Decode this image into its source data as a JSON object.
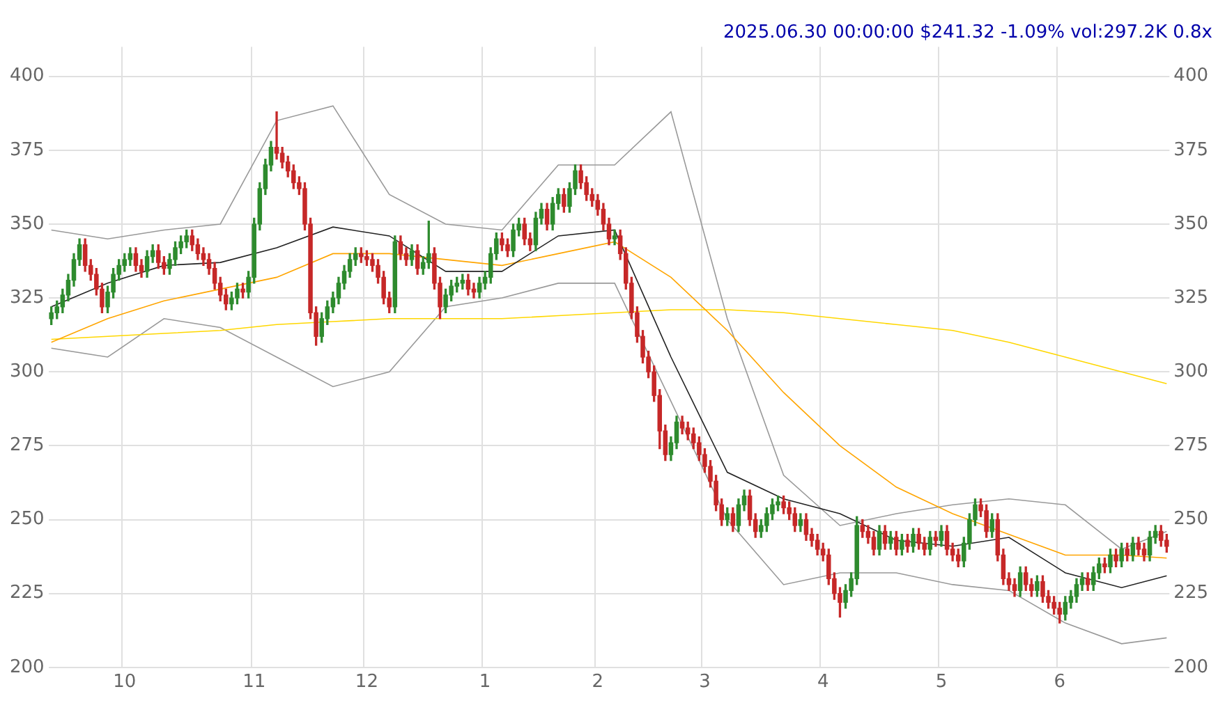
{
  "chart_data": {
    "type": "candlestick",
    "title": "2025.06.30 00:00:00 $241.32 -1.09% vol:297.2K 0.8x",
    "categories": [
      null,
      null,
      null,
      null,
      null,
      null,
      null,
      null,
      null,
      null,
      null,
      null,
      null,
      "10",
      null,
      null,
      null,
      null,
      null,
      null,
      null,
      null,
      null,
      null,
      null,
      null,
      null,
      null,
      null,
      null,
      null,
      null,
      null,
      null,
      null,
      null,
      "11",
      null,
      null,
      null,
      null,
      null,
      null,
      null,
      null,
      null,
      null,
      null,
      null,
      null,
      null,
      null,
      null,
      null,
      null,
      null,
      "12",
      null,
      null,
      null,
      null,
      null,
      null,
      null,
      null,
      null,
      null,
      null,
      null,
      null,
      null,
      null,
      null,
      null,
      null,
      null,
      null,
      "1",
      null,
      null,
      null,
      null,
      null,
      null,
      null,
      null,
      null,
      null,
      null,
      null,
      null,
      null,
      null,
      null,
      null,
      null,
      null,
      "2",
      null,
      null,
      null,
      null,
      null,
      null,
      null,
      null,
      null,
      null,
      null,
      null,
      null,
      null,
      null,
      null,
      null,
      null,
      "3",
      null,
      null,
      null,
      null,
      null,
      null,
      null,
      null,
      null,
      null,
      null,
      null,
      null,
      null,
      null,
      null,
      null,
      null,
      null,
      null,
      "4",
      null,
      null,
      null,
      null,
      null,
      null,
      null,
      null,
      null,
      null,
      null,
      null,
      null,
      null,
      null,
      null,
      null,
      null,
      null,
      null,
      "5",
      null,
      null,
      null,
      null,
      null,
      null,
      null,
      null,
      null,
      null,
      null,
      null,
      null,
      null,
      null,
      null,
      null,
      null,
      null,
      null,
      "6",
      null,
      null,
      null,
      null,
      null,
      null,
      null,
      null,
      null,
      null,
      null,
      null,
      null,
      null,
      null,
      null,
      null,
      null,
      null
    ],
    "colors": [
      "#2e8b2e",
      "#2e8b2e",
      "#2e8b2e",
      "#2e8b2e",
      "#2e8b2e",
      "#2e8b2e",
      "#c62828",
      "#c62828",
      "#c62828",
      "#c62828",
      "#2e8b2e",
      "#2e8b2e",
      "#2e8b2e",
      "#2e8b2e",
      "#2e8b2e",
      "#c62828",
      "#c62828",
      "#2e8b2e",
      "#2e8b2e",
      "#c62828",
      "#c62828",
      "#2e8b2e",
      "#2e8b2e",
      "#2e8b2e",
      "#2e8b2e",
      "#c62828",
      "#c62828",
      "#c62828",
      "#c62828",
      "#c62828",
      "#c62828",
      "#c62828",
      "#2e8b2e",
      "#2e8b2e",
      "#c62828",
      "#2e8b2e",
      "#2e8b2e",
      "#2e8b2e",
      "#2e8b2e",
      "#2e8b2e",
      "#c62828",
      "#c62828",
      "#c62828",
      "#c62828",
      "#c62828",
      "#c62828",
      "#c62828",
      "#c62828",
      "#2e8b2e",
      "#2e8b2e",
      "#2e8b2e",
      "#2e8b2e",
      "#2e8b2e",
      "#2e8b2e",
      "#2e8b2e",
      "#c62828",
      "#c62828",
      "#c62828",
      "#c62828",
      "#c62828",
      "#c62828",
      "#2e8b2e",
      "#c62828",
      "#c62828",
      "#2e8b2e",
      "#c62828",
      "#2e8b2e",
      "#2e8b2e",
      "#c62828",
      "#c62828",
      "#2e8b2e",
      "#2e8b2e",
      "#2e8b2e",
      "#2e8b2e",
      "#c62828",
      "#c62828",
      "#2e8b2e",
      "#2e8b2e",
      "#2e8b2e",
      "#2e8b2e",
      "#c62828",
      "#c62828",
      "#2e8b2e",
      "#2e8b2e",
      "#c62828",
      "#c62828",
      "#2e8b2e",
      "#2e8b2e",
      "#c62828",
      "#2e8b2e",
      "#2e8b2e",
      "#c62828",
      "#2e8b2e",
      "#2e8b2e",
      "#c62828",
      "#c62828",
      "#c62828",
      "#c62828",
      "#c62828",
      "#c62828",
      "#2e8b2e",
      "#c62828",
      "#c62828",
      "#c62828",
      "#c62828",
      "#c62828",
      "#c62828",
      "#c62828",
      "#c62828",
      "#c62828",
      "#2e8b2e",
      "#2e8b2e",
      "#c62828",
      "#c62828",
      "#c62828",
      "#c62828",
      "#c62828",
      "#c62828",
      "#c62828",
      "#c62828",
      "#2e8b2e",
      "#c62828",
      "#2e8b2e",
      "#2e8b2e",
      "#c62828",
      "#c62828",
      "#2e8b2e",
      "#2e8b2e",
      "#2e8b2e",
      "#2e8b2e",
      "#c62828",
      "#c62828",
      "#c62828",
      "#2e8b2e",
      "#c62828",
      "#c62828",
      "#c62828",
      "#c62828",
      "#c62828",
      "#c62828",
      "#c62828",
      "#2e8b2e",
      "#2e8b2e",
      "#2e8b2e",
      "#c62828",
      "#c62828",
      "#c62828",
      "#2e8b2e",
      "#c62828",
      "#2e8b2e",
      "#c62828",
      "#2e8b2e",
      "#c62828",
      "#2e8b2e",
      "#c62828",
      "#c62828",
      "#2e8b2e",
      "#c62828",
      "#2e8b2e",
      "#c62828",
      "#c62828",
      "#c62828",
      "#2e8b2e",
      "#2e8b2e",
      "#2e8b2e",
      "#c62828",
      "#c62828",
      "#2e8b2e",
      "#c62828",
      "#c62828",
      "#c62828",
      "#c62828",
      "#2e8b2e",
      "#c62828",
      "#c62828",
      "#2e8b2e",
      "#c62828",
      "#c62828",
      "#c62828",
      "#c62828",
      "#2e8b2e",
      "#2e8b2e",
      "#2e8b2e",
      "#2e8b2e",
      "#c62828",
      "#2e8b2e",
      "#2e8b2e",
      "#c62828",
      "#2e8b2e",
      "#c62828",
      "#2e8b2e",
      "#c62828",
      "#2e8b2e",
      "#c62828",
      "#c62828",
      "#2e8b2e",
      "#2e8b2e",
      "#c62828",
      "#c62828"
    ],
    "ohlc": [
      [
        318,
        322,
        316,
        320
      ],
      [
        320,
        324,
        318,
        322
      ],
      [
        322,
        328,
        320,
        326
      ],
      [
        326,
        333,
        324,
        331
      ],
      [
        331,
        340,
        329,
        338
      ],
      [
        338,
        345,
        336,
        343
      ],
      [
        343,
        345,
        334,
        336
      ],
      [
        336,
        338,
        331,
        333
      ],
      [
        333,
        335,
        326,
        328
      ],
      [
        328,
        330,
        320,
        322
      ],
      [
        322,
        329,
        320,
        327
      ],
      [
        327,
        335,
        325,
        333
      ],
      [
        333,
        338,
        331,
        336
      ],
      [
        336,
        340,
        334,
        338
      ],
      [
        338,
        342,
        336,
        340
      ],
      [
        340,
        342,
        334,
        336
      ],
      [
        336,
        338,
        332,
        334
      ],
      [
        334,
        341,
        332,
        339
      ],
      [
        339,
        343,
        337,
        341
      ],
      [
        341,
        343,
        335,
        337
      ],
      [
        337,
        339,
        333,
        335
      ],
      [
        335,
        340,
        333,
        338
      ],
      [
        338,
        344,
        336,
        342
      ],
      [
        342,
        346,
        340,
        344
      ],
      [
        344,
        348,
        342,
        346
      ],
      [
        346,
        348,
        341,
        343
      ],
      [
        343,
        345,
        338,
        340
      ],
      [
        340,
        342,
        336,
        338
      ],
      [
        338,
        340,
        333,
        335
      ],
      [
        335,
        337,
        328,
        330
      ],
      [
        330,
        332,
        324,
        326
      ],
      [
        326,
        328,
        321,
        323
      ],
      [
        323,
        327,
        321,
        325
      ],
      [
        325,
        330,
        323,
        328
      ],
      [
        328,
        330,
        325,
        327
      ],
      [
        327,
        334,
        325,
        332
      ],
      [
        332,
        352,
        330,
        350
      ],
      [
        350,
        364,
        348,
        362
      ],
      [
        362,
        372,
        360,
        370
      ],
      [
        370,
        378,
        368,
        376
      ],
      [
        376,
        388,
        372,
        374
      ],
      [
        374,
        376,
        369,
        371
      ],
      [
        371,
        373,
        366,
        368
      ],
      [
        368,
        370,
        362,
        364
      ],
      [
        364,
        366,
        360,
        362
      ],
      [
        362,
        364,
        348,
        350
      ],
      [
        350,
        352,
        318,
        320
      ],
      [
        320,
        322,
        309,
        312
      ],
      [
        312,
        320,
        310,
        318
      ],
      [
        318,
        324,
        316,
        322
      ],
      [
        322,
        327,
        320,
        325
      ],
      [
        325,
        332,
        323,
        330
      ],
      [
        330,
        336,
        328,
        334
      ],
      [
        334,
        340,
        332,
        338
      ],
      [
        338,
        342,
        336,
        340
      ],
      [
        340,
        342,
        337,
        339
      ],
      [
        339,
        341,
        336,
        338
      ],
      [
        338,
        340,
        334,
        336
      ],
      [
        336,
        338,
        330,
        332
      ],
      [
        332,
        334,
        323,
        325
      ],
      [
        325,
        327,
        320,
        322
      ],
      [
        322,
        346,
        320,
        344
      ],
      [
        344,
        346,
        338,
        340
      ],
      [
        340,
        342,
        336,
        338
      ],
      [
        338,
        343,
        336,
        341
      ],
      [
        341,
        343,
        333,
        335
      ],
      [
        335,
        339,
        333,
        337
      ],
      [
        337,
        351,
        335,
        340
      ],
      [
        340,
        342,
        328,
        330
      ],
      [
        330,
        332,
        318,
        322
      ],
      [
        322,
        328,
        320,
        326
      ],
      [
        326,
        331,
        324,
        329
      ],
      [
        329,
        332,
        327,
        330
      ],
      [
        330,
        333,
        328,
        331
      ],
      [
        331,
        333,
        326,
        328
      ],
      [
        328,
        330,
        325,
        327
      ],
      [
        327,
        332,
        325,
        330
      ],
      [
        330,
        334,
        328,
        332
      ],
      [
        332,
        342,
        330,
        340
      ],
      [
        340,
        347,
        338,
        345
      ],
      [
        345,
        347,
        341,
        343
      ],
      [
        343,
        345,
        339,
        341
      ],
      [
        341,
        350,
        339,
        348
      ],
      [
        348,
        352,
        346,
        350
      ],
      [
        350,
        352,
        343,
        345
      ],
      [
        345,
        347,
        341,
        343
      ],
      [
        343,
        354,
        341,
        352
      ],
      [
        352,
        357,
        350,
        355
      ],
      [
        355,
        357,
        348,
        350
      ],
      [
        350,
        359,
        348,
        357
      ],
      [
        357,
        362,
        355,
        360
      ],
      [
        360,
        362,
        354,
        356
      ],
      [
        356,
        364,
        354,
        362
      ],
      [
        362,
        370,
        360,
        368
      ],
      [
        368,
        370,
        362,
        364
      ],
      [
        364,
        366,
        358,
        360
      ],
      [
        360,
        362,
        356,
        358
      ],
      [
        358,
        360,
        353,
        355
      ],
      [
        355,
        357,
        348,
        350
      ],
      [
        350,
        352,
        343,
        345
      ],
      [
        345,
        348,
        343,
        346
      ],
      [
        346,
        348,
        338,
        340
      ],
      [
        340,
        342,
        328,
        330
      ],
      [
        330,
        332,
        318,
        320
      ],
      [
        320,
        322,
        310,
        312
      ],
      [
        312,
        314,
        303,
        305
      ],
      [
        305,
        307,
        298,
        300
      ],
      [
        300,
        302,
        290,
        292
      ],
      [
        292,
        294,
        274,
        280
      ],
      [
        280,
        282,
        270,
        272
      ],
      [
        272,
        278,
        270,
        276
      ],
      [
        276,
        285,
        274,
        283
      ],
      [
        283,
        285,
        279,
        281
      ],
      [
        281,
        283,
        277,
        279
      ],
      [
        279,
        281,
        274,
        276
      ],
      [
        276,
        278,
        270,
        272
      ],
      [
        272,
        274,
        266,
        268
      ],
      [
        268,
        270,
        261,
        263
      ],
      [
        263,
        265,
        253,
        255
      ],
      [
        255,
        257,
        248,
        250
      ],
      [
        250,
        254,
        248,
        252
      ],
      [
        252,
        254,
        246,
        248
      ],
      [
        248,
        257,
        246,
        255
      ],
      [
        255,
        260,
        253,
        258
      ],
      [
        258,
        260,
        248,
        250
      ],
      [
        250,
        252,
        244,
        246
      ],
      [
        246,
        250,
        244,
        248
      ],
      [
        248,
        254,
        246,
        252
      ],
      [
        252,
        257,
        250,
        255
      ],
      [
        255,
        258,
        253,
        256
      ],
      [
        256,
        258,
        252,
        254
      ],
      [
        254,
        256,
        250,
        252
      ],
      [
        252,
        254,
        246,
        248
      ],
      [
        248,
        252,
        246,
        250
      ],
      [
        250,
        252,
        243,
        245
      ],
      [
        245,
        247,
        241,
        243
      ],
      [
        243,
        245,
        238,
        240
      ],
      [
        240,
        242,
        236,
        238
      ],
      [
        238,
        240,
        228,
        230
      ],
      [
        230,
        232,
        223,
        225
      ],
      [
        225,
        227,
        217,
        222
      ],
      [
        222,
        228,
        220,
        226
      ],
      [
        226,
        232,
        224,
        230
      ],
      [
        230,
        251,
        228,
        248
      ],
      [
        248,
        250,
        244,
        246
      ],
      [
        246,
        248,
        242,
        244
      ],
      [
        244,
        246,
        238,
        240
      ],
      [
        240,
        248,
        238,
        246
      ],
      [
        246,
        248,
        240,
        242
      ],
      [
        242,
        246,
        240,
        244
      ],
      [
        244,
        246,
        238,
        240
      ],
      [
        240,
        245,
        238,
        243
      ],
      [
        243,
        245,
        239,
        241
      ],
      [
        241,
        247,
        239,
        245
      ],
      [
        245,
        247,
        240,
        242
      ],
      [
        242,
        244,
        238,
        240
      ],
      [
        240,
        246,
        238,
        244
      ],
      [
        244,
        246,
        241,
        243
      ],
      [
        243,
        248,
        241,
        246
      ],
      [
        246,
        248,
        238,
        240
      ],
      [
        240,
        242,
        236,
        238
      ],
      [
        238,
        240,
        234,
        236
      ],
      [
        236,
        244,
        234,
        242
      ],
      [
        242,
        252,
        240,
        250
      ],
      [
        250,
        257,
        248,
        255
      ],
      [
        255,
        257,
        251,
        253
      ],
      [
        253,
        255,
        244,
        246
      ],
      [
        246,
        252,
        244,
        250
      ],
      [
        250,
        252,
        236,
        238
      ],
      [
        238,
        240,
        228,
        230
      ],
      [
        230,
        232,
        226,
        228
      ],
      [
        228,
        230,
        224,
        226
      ],
      [
        226,
        234,
        224,
        232
      ],
      [
        232,
        234,
        226,
        228
      ],
      [
        228,
        230,
        224,
        226
      ],
      [
        226,
        231,
        224,
        229
      ],
      [
        229,
        231,
        222,
        224
      ],
      [
        224,
        226,
        220,
        222
      ],
      [
        222,
        224,
        218,
        220
      ],
      [
        220,
        222,
        215,
        218
      ],
      [
        218,
        224,
        216,
        222
      ],
      [
        222,
        226,
        220,
        224
      ],
      [
        224,
        230,
        222,
        228
      ],
      [
        228,
        232,
        226,
        230
      ],
      [
        230,
        232,
        226,
        228
      ],
      [
        228,
        234,
        226,
        232
      ],
      [
        232,
        237,
        230,
        235
      ],
      [
        235,
        237,
        232,
        234
      ],
      [
        234,
        240,
        232,
        238
      ],
      [
        238,
        240,
        234,
        236
      ],
      [
        236,
        242,
        234,
        240
      ],
      [
        240,
        242,
        236,
        238
      ],
      [
        238,
        244,
        236,
        242
      ],
      [
        242,
        244,
        238,
        240
      ],
      [
        240,
        242,
        236,
        238
      ],
      [
        238,
        246,
        236,
        244
      ],
      [
        244,
        248,
        242,
        246
      ],
      [
        246,
        248,
        241,
        243
      ],
      [
        243,
        245,
        239,
        241
      ]
    ],
    "series": [
      {
        "type": "line",
        "color": "#222222",
        "values": [
          322,
          null,
          null,
          null,
          null,
          null,
          null,
          null,
          null,
          null,
          330,
          null,
          null,
          null,
          null,
          null,
          null,
          null,
          null,
          null,
          336,
          null,
          null,
          null,
          null,
          null,
          null,
          null,
          null,
          null,
          337,
          null,
          null,
          null,
          null,
          null,
          null,
          null,
          null,
          null,
          342,
          null,
          null,
          null,
          null,
          null,
          null,
          null,
          null,
          null,
          349,
          null,
          null,
          null,
          null,
          null,
          null,
          null,
          null,
          null,
          346,
          null,
          null,
          null,
          null,
          null,
          null,
          null,
          null,
          null,
          334,
          null,
          null,
          null,
          null,
          null,
          null,
          null,
          null,
          null,
          334,
          null,
          null,
          null,
          null,
          null,
          null,
          null,
          null,
          null,
          346,
          null,
          null,
          null,
          null,
          null,
          null,
          null,
          null,
          null,
          348,
          null,
          null,
          null,
          null,
          null,
          null,
          null,
          null,
          null,
          305,
          null,
          null,
          null,
          null,
          null,
          null,
          null,
          null,
          null,
          266,
          null,
          null,
          null,
          null,
          null,
          null,
          null,
          null,
          null,
          257,
          null,
          null,
          null,
          null,
          null,
          null,
          null,
          null,
          null,
          252,
          null,
          null,
          null,
          null,
          null,
          null,
          null,
          null,
          null,
          243,
          null,
          null,
          null,
          null,
          null,
          null,
          null,
          null,
          null,
          241,
          null,
          null,
          null,
          null,
          null,
          null,
          null,
          null,
          null,
          244,
          null,
          null,
          null,
          null,
          null,
          null,
          null,
          null,
          null,
          232,
          null,
          null,
          null,
          null,
          null,
          null,
          null,
          null,
          null,
          227,
          null,
          null,
          null,
          null,
          null,
          null,
          null,
          231
        ]
      },
      {
        "type": "line",
        "color": "#ffa500",
        "values": [
          310,
          null,
          null,
          null,
          null,
          null,
          null,
          null,
          null,
          null,
          318,
          null,
          null,
          null,
          null,
          null,
          null,
          null,
          null,
          null,
          324,
          null,
          null,
          null,
          null,
          null,
          null,
          null,
          null,
          null,
          328,
          null,
          null,
          null,
          null,
          null,
          null,
          null,
          null,
          null,
          332,
          null,
          null,
          null,
          null,
          null,
          null,
          null,
          null,
          null,
          340,
          null,
          null,
          null,
          null,
          null,
          null,
          null,
          null,
          null,
          340,
          null,
          null,
          null,
          null,
          null,
          null,
          null,
          null,
          null,
          338,
          null,
          null,
          null,
          null,
          null,
          null,
          null,
          null,
          null,
          336,
          null,
          null,
          null,
          null,
          null,
          null,
          null,
          null,
          null,
          340,
          null,
          null,
          null,
          null,
          null,
          null,
          null,
          null,
          null,
          344,
          null,
          null,
          null,
          null,
          null,
          null,
          null,
          null,
          null,
          332,
          null,
          null,
          null,
          null,
          null,
          null,
          null,
          null,
          null,
          314,
          null,
          null,
          null,
          null,
          null,
          null,
          null,
          null,
          null,
          293,
          null,
          null,
          null,
          null,
          null,
          null,
          null,
          null,
          null,
          275,
          null,
          null,
          null,
          null,
          null,
          null,
          null,
          null,
          null,
          261,
          null,
          null,
          null,
          null,
          null,
          null,
          null,
          null,
          null,
          252,
          null,
          null,
          null,
          null,
          null,
          null,
          null,
          null,
          null,
          245,
          null,
          null,
          null,
          null,
          null,
          null,
          null,
          null,
          null,
          238,
          null,
          null,
          null,
          null,
          null,
          null,
          null,
          null,
          null,
          238,
          null,
          null,
          null,
          null,
          null,
          null,
          null,
          237
        ]
      },
      {
        "type": "line",
        "color": "#ffd700",
        "values": [
          311,
          null,
          null,
          null,
          null,
          null,
          null,
          null,
          null,
          null,
          312,
          null,
          null,
          null,
          null,
          null,
          null,
          null,
          null,
          null,
          313,
          null,
          null,
          null,
          null,
          null,
          null,
          null,
          null,
          null,
          314,
          null,
          null,
          null,
          null,
          null,
          null,
          null,
          null,
          null,
          316,
          null,
          null,
          null,
          null,
          null,
          null,
          null,
          null,
          null,
          317,
          null,
          null,
          null,
          null,
          null,
          null,
          null,
          null,
          null,
          318,
          null,
          null,
          null,
          null,
          null,
          null,
          null,
          null,
          null,
          318,
          null,
          null,
          null,
          null,
          null,
          null,
          null,
          null,
          null,
          318,
          null,
          null,
          null,
          null,
          null,
          null,
          null,
          null,
          null,
          319,
          null,
          null,
          null,
          null,
          null,
          null,
          null,
          null,
          null,
          320,
          null,
          null,
          null,
          null,
          null,
          null,
          null,
          null,
          null,
          321,
          null,
          null,
          null,
          null,
          null,
          null,
          null,
          null,
          null,
          321,
          null,
          null,
          null,
          null,
          null,
          null,
          null,
          null,
          null,
          320,
          null,
          null,
          null,
          null,
          null,
          null,
          null,
          null,
          null,
          318,
          null,
          null,
          null,
          null,
          null,
          null,
          null,
          null,
          null,
          316,
          null,
          null,
          null,
          null,
          null,
          null,
          null,
          null,
          null,
          314,
          null,
          null,
          null,
          null,
          null,
          null,
          null,
          null,
          null,
          310,
          null,
          null,
          null,
          null,
          null,
          null,
          null,
          null,
          null,
          305,
          null,
          null,
          null,
          null,
          null,
          null,
          null,
          null,
          null,
          300,
          null,
          null,
          null,
          null,
          null,
          null,
          null,
          296
        ]
      },
      {
        "type": "line",
        "color": "#999999",
        "values": [
          348,
          null,
          null,
          null,
          null,
          null,
          null,
          null,
          null,
          null,
          345,
          null,
          null,
          null,
          null,
          null,
          null,
          null,
          null,
          null,
          348,
          null,
          null,
          null,
          null,
          null,
          null,
          null,
          null,
          null,
          350,
          null,
          null,
          null,
          null,
          null,
          null,
          null,
          null,
          null,
          385,
          null,
          null,
          null,
          null,
          null,
          null,
          null,
          null,
          null,
          390,
          null,
          null,
          null,
          null,
          null,
          null,
          null,
          null,
          null,
          360,
          null,
          null,
          null,
          null,
          null,
          null,
          null,
          null,
          null,
          350,
          null,
          null,
          null,
          null,
          null,
          null,
          null,
          null,
          null,
          348,
          null,
          null,
          null,
          null,
          null,
          null,
          null,
          null,
          null,
          370,
          null,
          null,
          null,
          null,
          null,
          null,
          null,
          null,
          null,
          370,
          null,
          null,
          null,
          null,
          null,
          null,
          null,
          null,
          null,
          388,
          null,
          null,
          null,
          null,
          null,
          null,
          null,
          null,
          null,
          318,
          null,
          null,
          null,
          null,
          null,
          null,
          null,
          null,
          null,
          265,
          null,
          null,
          null,
          null,
          null,
          null,
          null,
          null,
          null,
          248,
          null,
          null,
          null,
          null,
          null,
          null,
          null,
          null,
          null,
          252,
          null,
          null,
          null,
          null,
          null,
          null,
          null,
          null,
          null,
          255,
          null,
          null,
          null,
          null,
          null,
          null,
          null,
          null,
          null,
          257,
          null,
          null,
          null,
          null,
          null,
          null,
          null,
          null,
          null,
          255,
          null,
          null,
          null,
          null,
          null,
          null,
          null,
          null,
          null,
          240,
          null,
          null,
          null,
          null,
          null,
          null,
          null,
          246
        ]
      },
      {
        "type": "line",
        "color": "#999999",
        "values": [
          308,
          null,
          null,
          null,
          null,
          null,
          null,
          null,
          null,
          null,
          305,
          null,
          null,
          null,
          null,
          null,
          null,
          null,
          null,
          null,
          318,
          null,
          null,
          null,
          null,
          null,
          null,
          null,
          null,
          null,
          315,
          null,
          null,
          null,
          null,
          null,
          null,
          null,
          null,
          null,
          305,
          null,
          null,
          null,
          null,
          null,
          null,
          null,
          null,
          null,
          295,
          null,
          null,
          null,
          null,
          null,
          null,
          null,
          null,
          null,
          300,
          null,
          null,
          null,
          null,
          null,
          null,
          null,
          null,
          null,
          322,
          null,
          null,
          null,
          null,
          null,
          null,
          null,
          null,
          null,
          325,
          null,
          null,
          null,
          null,
          null,
          null,
          null,
          null,
          null,
          330,
          null,
          null,
          null,
          null,
          null,
          null,
          null,
          null,
          null,
          330,
          null,
          null,
          null,
          null,
          null,
          null,
          null,
          null,
          null,
          290,
          null,
          null,
          null,
          null,
          null,
          null,
          null,
          null,
          null,
          250,
          null,
          null,
          null,
          null,
          null,
          null,
          null,
          null,
          null,
          228,
          null,
          null,
          null,
          null,
          null,
          null,
          null,
          null,
          null,
          232,
          null,
          null,
          null,
          null,
          null,
          null,
          null,
          null,
          null,
          232,
          null,
          null,
          null,
          null,
          null,
          null,
          null,
          null,
          null,
          228,
          null,
          null,
          null,
          null,
          null,
          null,
          null,
          null,
          null,
          226,
          null,
          null,
          null,
          null,
          null,
          null,
          null,
          null,
          null,
          215,
          null,
          null,
          null,
          null,
          null,
          null,
          null,
          null,
          null,
          208,
          null,
          null,
          null,
          null,
          null,
          null,
          null,
          210
        ]
      }
    ],
    "ylim": [
      200,
      410
    ],
    "yticks": [
      200,
      225,
      250,
      275,
      300,
      325,
      350,
      375,
      400
    ],
    "y2lim": [
      200,
      410
    ],
    "y2ticks": [
      200,
      225,
      250,
      275,
      300,
      325,
      350,
      375,
      400
    ],
    "grid": true,
    "legend": false
  }
}
